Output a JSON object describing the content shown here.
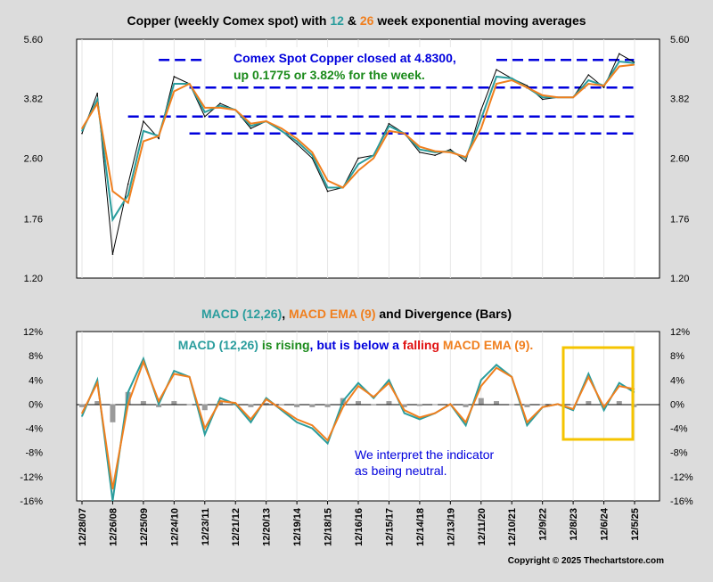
{
  "colors": {
    "background": "#dcdcdc",
    "plot_bg": "#ffffff",
    "price": "#000000",
    "ema12": "#2a9d9d",
    "ema26": "#f07f1e",
    "macd": "#2a9d9d",
    "macd_ema": "#f07f1e",
    "bars": "#9a9a9a",
    "support_lines": "#0000dd",
    "highlight_box": "#f5c400",
    "note_blue": "#0000dd",
    "note_green": "#1a8a1a",
    "note_red": "#e01010"
  },
  "top_chart": {
    "title_parts": [
      {
        "text": "Copper (weekly Comex spot) with ",
        "color": "#000000"
      },
      {
        "text": "12",
        "color": "#2a9d9d"
      },
      {
        "text": " & ",
        "color": "#000000"
      },
      {
        "text": "26",
        "color": "#f07f1e"
      },
      {
        "text": " week exponential moving averages",
        "color": "#000000"
      }
    ],
    "annotation_line1": "Comex Spot Copper closed at 4.8300,",
    "annotation_line2": "up 0.1775 or 3.82% for the week.",
    "y_ticks": [
      "5.60",
      "3.82",
      "2.60",
      "1.76",
      "1.20"
    ]
  },
  "bottom_chart": {
    "title_parts": [
      {
        "text": "MACD (12,26)",
        "color": "#2a9d9d"
      },
      {
        "text": ", ",
        "color": "#000000"
      },
      {
        "text": "MACD EMA (9)",
        "color": "#f07f1e"
      },
      {
        "text": " and Divergence (Bars)",
        "color": "#000000"
      }
    ],
    "note_parts": [
      {
        "text": "MACD (12,26)",
        "color": "#2a9d9d"
      },
      {
        "text": " is rising",
        "color": "#1a8a1a"
      },
      {
        "text": ", but is below a ",
        "color": "#0000dd"
      },
      {
        "text": "falling",
        "color": "#e01010"
      },
      {
        "text": " MACD EMA (9).",
        "color": "#f07f1e"
      }
    ],
    "interpret_line1": "We interpret the indicator",
    "interpret_line2": "as being neutral.",
    "y_ticks": [
      "12%",
      "8%",
      "4%",
      "0%",
      "-4%",
      "-8%",
      "-12%",
      "-16%"
    ]
  },
  "x_labels": [
    "12/28/07",
    "12/26/08",
    "12/25/09",
    "12/24/10",
    "12/23/11",
    "12/21/12",
    "12/20/13",
    "12/19/14",
    "12/18/15",
    "12/16/16",
    "12/15/17",
    "12/14/18",
    "12/13/19",
    "12/11/20",
    "12/10/21",
    "12/9/22",
    "12/8/23",
    "12/6/24",
    "12/5/25"
  ],
  "copyright": "Copyright © 2025 Thechartstore.com",
  "chart_data": [
    {
      "type": "line",
      "title": "Copper (weekly Comex spot) with 12 & 26 week exponential moving averages",
      "scale": "log",
      "ylim": [
        1.2,
        5.6
      ],
      "x": [
        "2007-12-28",
        "2008-06-27",
        "2008-12-26",
        "2009-06-26",
        "2009-12-25",
        "2010-06-25",
        "2010-12-24",
        "2011-06-24",
        "2011-12-23",
        "2012-06-22",
        "2012-12-21",
        "2013-06-21",
        "2013-12-20",
        "2014-06-20",
        "2014-12-19",
        "2015-06-19",
        "2015-12-18",
        "2016-06-17",
        "2016-12-16",
        "2017-06-16",
        "2017-12-15",
        "2018-06-15",
        "2018-12-14",
        "2019-06-14",
        "2019-12-13",
        "2020-06-12",
        "2020-12-11",
        "2021-06-11",
        "2021-12-10",
        "2022-06-10",
        "2022-12-09",
        "2023-06-09",
        "2023-12-08",
        "2024-06-07",
        "2024-12-06",
        "2025-06-06",
        "2025-11-28"
      ],
      "series": [
        {
          "name": "Copper",
          "values": [
            3.05,
            3.95,
            1.4,
            2.2,
            3.3,
            2.95,
            4.4,
            4.2,
            3.4,
            3.7,
            3.55,
            3.15,
            3.3,
            3.1,
            2.85,
            2.6,
            2.1,
            2.15,
            2.6,
            2.65,
            3.25,
            3.05,
            2.7,
            2.65,
            2.75,
            2.55,
            3.55,
            4.6,
            4.35,
            4.15,
            3.8,
            3.85,
            3.85,
            4.45,
            4.1,
            5.1,
            4.83
          ]
        },
        {
          "name": "12",
          "values": [
            3.1,
            3.8,
            1.75,
            2.05,
            3.1,
            3.0,
            4.2,
            4.2,
            3.5,
            3.65,
            3.55,
            3.2,
            3.3,
            3.1,
            2.9,
            2.65,
            2.15,
            2.15,
            2.5,
            2.65,
            3.2,
            3.05,
            2.75,
            2.7,
            2.72,
            2.6,
            3.35,
            4.4,
            4.35,
            4.1,
            3.85,
            3.85,
            3.85,
            4.3,
            4.15,
            4.85,
            4.8
          ]
        },
        {
          "name": "26",
          "values": [
            3.15,
            3.7,
            2.1,
            1.95,
            2.9,
            3.0,
            4.0,
            4.2,
            3.6,
            3.6,
            3.55,
            3.25,
            3.3,
            3.15,
            2.95,
            2.7,
            2.25,
            2.15,
            2.4,
            2.6,
            3.1,
            3.05,
            2.8,
            2.72,
            2.7,
            2.62,
            3.15,
            4.2,
            4.3,
            4.1,
            3.9,
            3.85,
            3.85,
            4.2,
            4.15,
            4.7,
            4.75
          ]
        }
      ]
    },
    {
      "type": "line",
      "title": "MACD (12,26), MACD EMA (9) and Divergence (Bars)",
      "ylim": [
        -16,
        12
      ],
      "x": [
        "2007-12-28",
        "2008-06-27",
        "2008-12-26",
        "2009-06-26",
        "2009-12-25",
        "2010-06-25",
        "2010-12-24",
        "2011-06-24",
        "2011-12-23",
        "2012-06-22",
        "2012-12-21",
        "2013-06-21",
        "2013-12-20",
        "2014-06-20",
        "2014-12-19",
        "2015-06-19",
        "2015-12-18",
        "2016-06-17",
        "2016-12-16",
        "2017-06-16",
        "2017-12-15",
        "2018-06-15",
        "2018-12-14",
        "2019-06-14",
        "2019-12-13",
        "2020-06-12",
        "2020-12-11",
        "2021-06-11",
        "2021-12-10",
        "2022-06-10",
        "2022-12-09",
        "2023-06-09",
        "2023-12-08",
        "2024-06-07",
        "2024-12-06",
        "2025-06-06",
        "2025-11-28"
      ],
      "series": [
        {
          "name": "MACD (12,26)",
          "values": [
            -2.0,
            4.0,
            -16.0,
            2.0,
            7.5,
            0.0,
            5.5,
            4.5,
            -5.0,
            1.0,
            0.0,
            -3.0,
            1.0,
            -1.0,
            -3.0,
            -4.0,
            -6.5,
            0.5,
            3.5,
            1.0,
            4.0,
            -1.5,
            -2.5,
            -1.5,
            0.0,
            -3.5,
            4.0,
            6.5,
            4.5,
            -3.5,
            -0.5,
            0.0,
            -1.0,
            5.0,
            -1.0,
            3.5,
            2.0
          ]
        },
        {
          "name": "MACD EMA (9)",
          "values": [
            -1.5,
            3.5,
            -14.0,
            0.0,
            7.0,
            0.5,
            5.0,
            4.5,
            -4.0,
            0.5,
            0.2,
            -2.5,
            0.8,
            -0.8,
            -2.5,
            -3.5,
            -6.0,
            -0.5,
            3.0,
            1.2,
            3.5,
            -1.0,
            -2.2,
            -1.5,
            0.0,
            -3.0,
            3.0,
            6.0,
            4.5,
            -3.0,
            -0.5,
            0.0,
            -0.8,
            4.5,
            -0.5,
            3.0,
            2.5
          ]
        },
        {
          "name": "Divergence",
          "values": [
            -0.5,
            0.5,
            -3.0,
            2.0,
            0.5,
            -0.5,
            0.5,
            0.0,
            -1.0,
            0.5,
            -0.2,
            -0.5,
            0.2,
            -0.2,
            -0.5,
            -0.5,
            -0.5,
            1.0,
            0.5,
            -0.2,
            0.5,
            -0.5,
            -0.3,
            0.0,
            0.0,
            -0.5,
            1.0,
            0.5,
            0.0,
            -0.5,
            0.0,
            0.0,
            -0.2,
            0.5,
            -0.5,
            0.5,
            -0.5
          ]
        }
      ]
    }
  ]
}
